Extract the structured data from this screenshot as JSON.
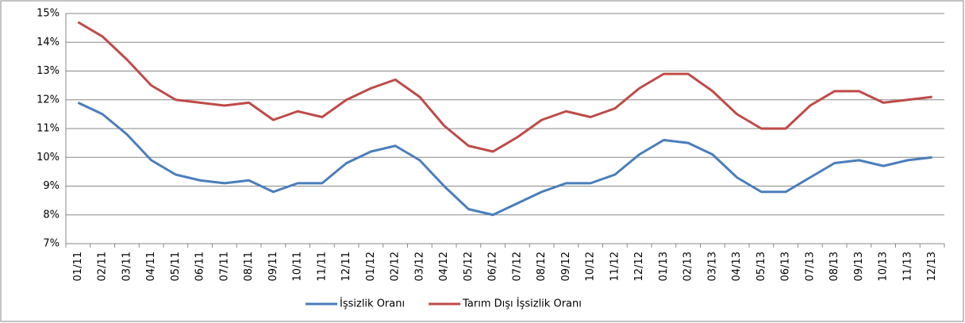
{
  "chart_data": {
    "type": "line",
    "categories": [
      "01/11",
      "02/11",
      "03/11",
      "04/11",
      "05/11",
      "06/11",
      "07/11",
      "08/11",
      "09/11",
      "10/11",
      "11/11",
      "12/11",
      "01/12",
      "02/12",
      "03/12",
      "04/12",
      "05/12",
      "06/12",
      "07/12",
      "08/12",
      "09/12",
      "10/12",
      "11/12",
      "12/12",
      "01/13",
      "02/13",
      "03/13",
      "04/13",
      "05/13",
      "06/13",
      "07/13",
      "08/13",
      "09/13",
      "10/13",
      "11/13",
      "12/13"
    ],
    "series": [
      {
        "name": "İşsizlik Oranı",
        "color": "#4a7ebb",
        "values": [
          11.9,
          11.5,
          10.8,
          9.9,
          9.4,
          9.2,
          9.1,
          9.2,
          8.8,
          9.1,
          9.1,
          9.8,
          10.2,
          10.4,
          9.9,
          9.0,
          8.2,
          8.0,
          8.4,
          8.8,
          9.1,
          9.1,
          9.4,
          10.1,
          10.6,
          10.5,
          10.1,
          9.3,
          8.8,
          8.8,
          9.3,
          9.8,
          9.9,
          9.7,
          9.9,
          10.0
        ]
      },
      {
        "name": "Tarım Dışı İşsizlik Oranı",
        "color": "#be4b48",
        "values": [
          14.7,
          14.2,
          13.4,
          12.5,
          12.0,
          11.9,
          11.8,
          11.9,
          11.3,
          11.6,
          11.4,
          12.0,
          12.4,
          12.7,
          12.1,
          11.1,
          10.4,
          10.2,
          10.7,
          11.3,
          11.6,
          11.4,
          11.7,
          12.4,
          12.9,
          12.9,
          12.3,
          11.5,
          11.0,
          11.0,
          11.8,
          12.3,
          12.3,
          11.9,
          12.0,
          12.1
        ]
      }
    ],
    "ylim": [
      7,
      15
    ],
    "yticks": [
      {
        "value": 7,
        "label": "7%"
      },
      {
        "value": 8,
        "label": "8%"
      },
      {
        "value": 9,
        "label": "9%"
      },
      {
        "value": 10,
        "label": "10%"
      },
      {
        "value": 11,
        "label": "11%"
      },
      {
        "value": 12,
        "label": "12%"
      },
      {
        "value": 13,
        "label": "13%"
      },
      {
        "value": 14,
        "label": "14%"
      },
      {
        "value": 15,
        "label": "15%"
      }
    ],
    "grid": true,
    "legend": "bottom"
  }
}
